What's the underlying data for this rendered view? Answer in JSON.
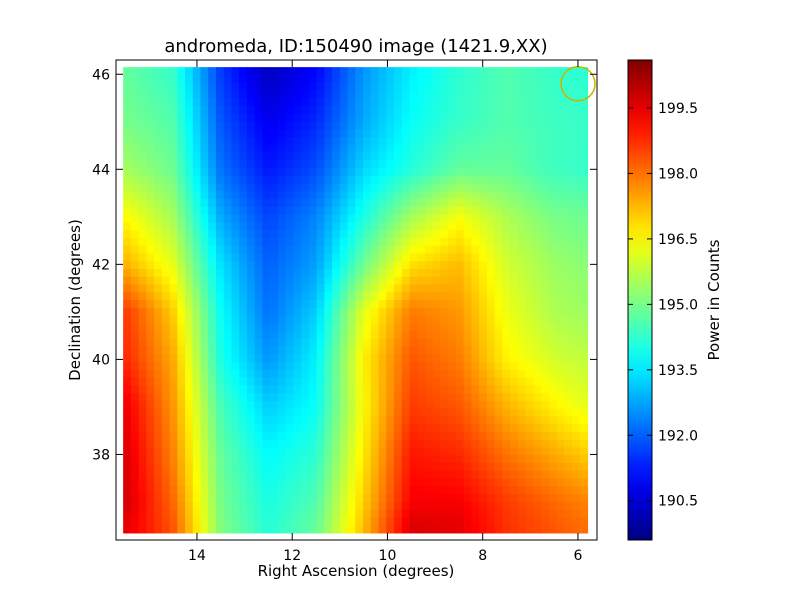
{
  "chart_data": {
    "type": "heatmap",
    "title": "andromeda, ID:150490 image (1421.9,XX)",
    "xlabel": "Right Ascension (degrees)",
    "ylabel": "Declination (degrees)",
    "xlim": [
      15.7,
      5.6
    ],
    "ylim": [
      36.2,
      46.3
    ],
    "x_axis_inverted": true,
    "x_ticks": [
      "14",
      "12",
      "10",
      "8",
      "6"
    ],
    "y_ticks": [
      "38",
      "40",
      "42",
      "44",
      "46"
    ],
    "colormap": "jet",
    "colorbar": {
      "label": "Power in Counts",
      "range": [
        189.6,
        200.6
      ],
      "ticks": [
        "190.5",
        "192.0",
        "193.5",
        "195.0",
        "196.5",
        "198.0",
        "199.5"
      ]
    },
    "grid": false,
    "marker": {
      "shape": "circle",
      "x": 6.0,
      "y": 45.8,
      "color": "#c8b400"
    },
    "x": [
      15.5,
      14.5,
      13.5,
      12.5,
      11.5,
      10.5,
      9.5,
      8.5,
      7.5,
      6.5,
      5.8
    ],
    "y": [
      46.0,
      45.0,
      44.0,
      43.0,
      42.0,
      41.0,
      40.0,
      39.0,
      38.0,
      37.0,
      36.5
    ],
    "z": [
      [
        194.8,
        194.3,
        191.6,
        190.3,
        191.0,
        192.6,
        193.6,
        194.2,
        194.6,
        194.3,
        194.2
      ],
      [
        195.0,
        194.6,
        191.9,
        190.8,
        191.4,
        192.8,
        193.8,
        194.3,
        194.6,
        194.4,
        194.3
      ],
      [
        195.5,
        194.9,
        192.2,
        191.2,
        191.8,
        193.3,
        194.1,
        194.8,
        194.8,
        194.4,
        194.3
      ],
      [
        196.5,
        195.5,
        192.8,
        191.7,
        192.4,
        194.0,
        195.5,
        196.4,
        195.6,
        195.0,
        194.9
      ],
      [
        197.3,
        196.2,
        193.4,
        192.0,
        192.7,
        194.9,
        196.8,
        197.2,
        196.0,
        195.4,
        195.2
      ],
      [
        198.6,
        197.0,
        193.8,
        192.2,
        193.2,
        196.2,
        197.9,
        197.6,
        196.3,
        195.6,
        195.4
      ],
      [
        198.8,
        197.4,
        194.0,
        192.6,
        193.6,
        196.6,
        198.3,
        197.9,
        196.6,
        196.0,
        195.8
      ],
      [
        199.4,
        197.6,
        194.5,
        193.2,
        193.8,
        196.5,
        198.6,
        198.3,
        197.3,
        196.6,
        196.2
      ],
      [
        199.6,
        197.8,
        194.8,
        193.7,
        194.2,
        196.7,
        199.0,
        198.8,
        198.0,
        197.4,
        197.0
      ],
      [
        199.7,
        198.1,
        195.0,
        194.0,
        194.6,
        197.0,
        199.3,
        199.3,
        198.6,
        198.1,
        197.8
      ],
      [
        199.5,
        198.3,
        195.1,
        194.1,
        194.8,
        197.2,
        199.6,
        199.5,
        198.7,
        198.3,
        198.0
      ]
    ]
  }
}
